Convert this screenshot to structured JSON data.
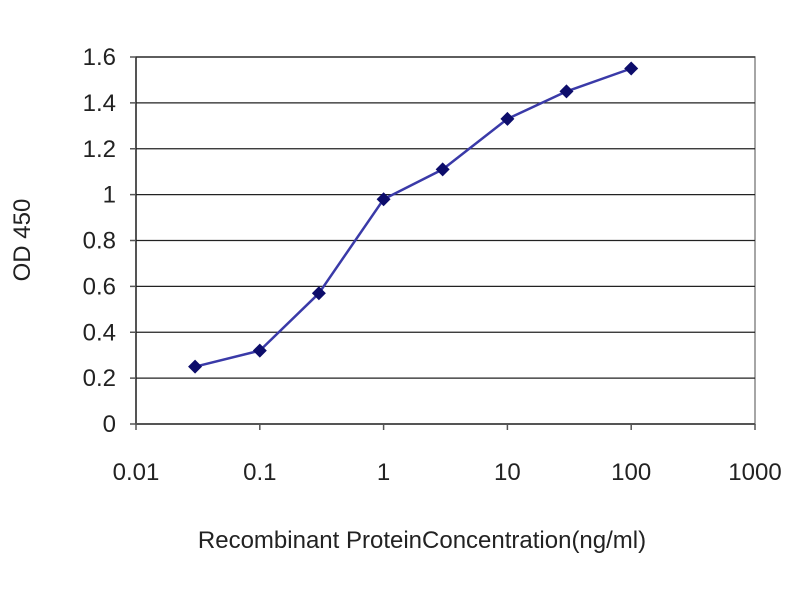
{
  "chart_data": {
    "type": "line",
    "title": "",
    "xlabel": "Recombinant ProteinConcentration(ng/ml)",
    "ylabel": "OD 450",
    "x_scale": "log",
    "xlim": [
      0.01,
      1000
    ],
    "ylim": [
      0,
      1.6
    ],
    "x_ticks": [
      "0.01",
      "0.1",
      "1",
      "10",
      "100",
      "1000"
    ],
    "y_ticks": [
      "0",
      "0.2",
      "0.4",
      "0.6",
      "0.8",
      "1",
      "1.2",
      "1.4",
      "1.6"
    ],
    "grid": "horizontal",
    "legend": "none",
    "series": [
      {
        "x": [
          0.03,
          0.1,
          0.3,
          1,
          3,
          10,
          30,
          100
        ],
        "y": [
          0.25,
          0.32,
          0.57,
          0.98,
          1.11,
          1.33,
          1.45,
          1.55
        ]
      }
    ],
    "colors": {
      "line": "#3a3aa8",
      "marker": "#0d0d6b",
      "grid": "#222222",
      "plot_background": "#ffffff"
    }
  }
}
